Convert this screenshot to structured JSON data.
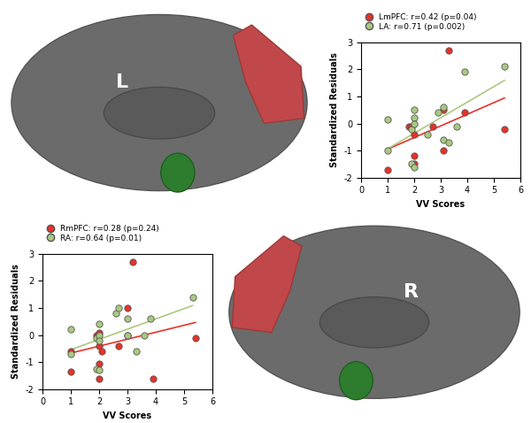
{
  "chart_data": [
    {
      "type": "scatter",
      "x_label": "VV Scores",
      "y_label": "Standardized Residuals",
      "xlim": [
        0,
        6
      ],
      "ylim": [
        -2,
        3
      ],
      "xticks": [
        0,
        1,
        2,
        3,
        4,
        5,
        6
      ],
      "yticks": [
        -2,
        -1,
        0,
        1,
        2,
        3
      ],
      "legend": "upper left",
      "annotations": [
        "L"
      ],
      "series": [
        {
          "name": "LmPFC: r=0.42 (p=0.04)",
          "color": "#e8312a",
          "marker": "o",
          "x": [
            1.0,
            1.8,
            1.9,
            2.0,
            2.0,
            2.0,
            2.7,
            3.1,
            3.1,
            3.3,
            3.9,
            5.4
          ],
          "values": [
            -1.7,
            -0.1,
            -0.1,
            -0.4,
            -1.2,
            -1.5,
            -0.1,
            -1.0,
            0.5,
            2.7,
            0.4,
            -0.2
          ]
        },
        {
          "name": "LA: r=0.71 (p=0.002)",
          "color": "#a9c97f",
          "marker": "o",
          "x": [
            1.0,
            1.0,
            1.9,
            1.9,
            2.0,
            2.0,
            2.0,
            2.0,
            2.5,
            2.9,
            3.1,
            3.1,
            3.3,
            3.6,
            3.9,
            5.4
          ],
          "values": [
            0.15,
            -1.0,
            -0.2,
            -1.5,
            0.2,
            0.5,
            0.0,
            -1.6,
            -0.4,
            0.4,
            0.6,
            -0.6,
            -0.7,
            -0.1,
            1.9,
            2.1
          ]
        }
      ]
    },
    {
      "type": "scatter",
      "x_label": "VV Scores",
      "y_label": "Standardized Residuals",
      "xlim": [
        0,
        6
      ],
      "ylim": [
        -2,
        3
      ],
      "xticks": [
        0,
        1,
        2,
        3,
        4,
        5,
        6
      ],
      "yticks": [
        -2,
        -1,
        0,
        1,
        2,
        3
      ],
      "legend": "upper left",
      "annotations": [
        "R"
      ],
      "series": [
        {
          "name": "RmPFC: r=0.28 (p=0.24)",
          "color": "#e8312a",
          "marker": "o",
          "x": [
            1.0,
            1.0,
            1.9,
            2.0,
            2.0,
            2.0,
            2.0,
            2.1,
            2.7,
            3.0,
            3.0,
            3.2,
            3.9,
            5.4
          ],
          "values": [
            -0.6,
            -1.35,
            0.0,
            0.1,
            -0.4,
            -1.05,
            -1.6,
            -0.6,
            -0.4,
            0.0,
            1.0,
            2.7,
            -1.6,
            -0.1
          ]
        },
        {
          "name": "RA: r=0.64 (p=0.01)",
          "color": "#a9c97f",
          "marker": "o",
          "x": [
            1.0,
            1.0,
            1.9,
            1.9,
            2.0,
            2.0,
            2.0,
            2.0,
            2.6,
            2.7,
            3.0,
            3.0,
            3.3,
            3.6,
            3.8,
            5.3
          ],
          "values": [
            0.2,
            -0.7,
            -0.1,
            -1.25,
            0.4,
            0.0,
            -1.3,
            -0.2,
            0.8,
            1.0,
            0.6,
            0.0,
            -0.6,
            0.0,
            0.6,
            1.4
          ]
        }
      ]
    }
  ]
}
